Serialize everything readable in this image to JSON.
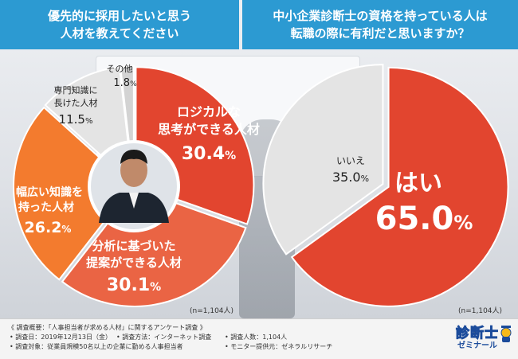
{
  "header_left": {
    "line1": "優先的に採用したいと思う",
    "line2": "人材を教えてください"
  },
  "header_right": {
    "line1": "中小企業診断士の資格を持っている人は",
    "line2": "転職の際に有利だと思いますか？"
  },
  "chart_data": [
    {
      "type": "pie",
      "title": "優先的に採用したいと思う人材を教えてください",
      "slices": [
        {
          "label": "ロジカルな思考ができる人材",
          "value": 30.4,
          "color": "#e2452f"
        },
        {
          "label": "分析に基づいた提案ができる人材",
          "value": 30.1,
          "color": "#ea6444"
        },
        {
          "label": "幅広い知識を持った人材",
          "value": 26.2,
          "color": "#f37b2e"
        },
        {
          "label": "専門知識に長けた人材",
          "value": 11.5,
          "color": "#e4e4e4"
        },
        {
          "label": "その他",
          "value": 1.8,
          "color": "#d3d3d3"
        }
      ],
      "note": "(n=1,104人)"
    },
    {
      "type": "pie",
      "title": "中小企業診断士の資格を持っている人は転職の際に有利だと思いますか？",
      "slices": [
        {
          "label": "はい",
          "value": 65.0,
          "color": "#e2452f"
        },
        {
          "label": "いいえ",
          "value": 35.0,
          "color": "#e4e4e4"
        }
      ],
      "note": "(n=1,104人)"
    }
  ],
  "labels": {
    "logical_1": "ロジカルな",
    "logical_2": "思考ができる人材",
    "logical_pct": "30.4",
    "analysis_1": "分析に基づいた",
    "analysis_2": "提案ができる人材",
    "analysis_pct": "30.1",
    "broad_1": "幅広い知識を",
    "broad_2": "持った人材",
    "broad_pct": "26.2",
    "expert_1": "専門知識に",
    "expert_2": "長けた人材",
    "expert_pct": "11.5",
    "other_1": "その他",
    "other_pct": "1.8",
    "yes": "はい",
    "yes_pct": "65.0",
    "no": "いいえ",
    "no_pct": "35.0",
    "pct_sign": "%"
  },
  "notes": {
    "left": "(n=1,104人)",
    "right": "(n=1,104人)"
  },
  "footer": {
    "title": "《 調査概要：「人事担当者が求める人材」に関するアンケート調査 》",
    "date": "• 調査日：2019年12月13日（金）",
    "method": "• 調査方法：インターネット調査",
    "count": "• 調査人数：1,104人",
    "target": "• 調査対象：従業員規模50名以上の企業に勤める人事担当者",
    "provider": "• モニター提供元：ゼネラルリサーチ"
  },
  "logo": {
    "main": "診断士",
    "sub": "ゼミナール"
  }
}
